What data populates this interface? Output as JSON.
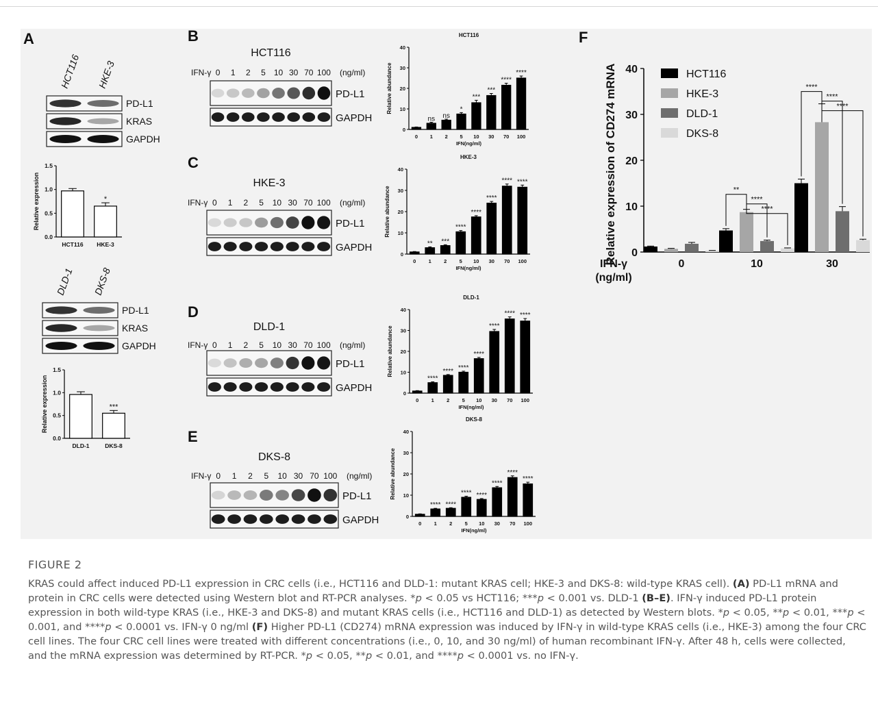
{
  "panels": {
    "A": {
      "label": "A",
      "top_blot": {
        "lanes": [
          "HCT116",
          "HKE-3"
        ],
        "bands": [
          "PD-L1",
          "KRAS",
          "GAPDH"
        ]
      },
      "top_chart_id": 0,
      "bottom_blot": {
        "lanes": [
          "DLD-1",
          "DKS-8"
        ],
        "bands": [
          "PD-L1",
          "KRAS",
          "GAPDH"
        ]
      },
      "bottom_chart_id": 1
    },
    "B": {
      "label": "B",
      "cell": "HCT116",
      "treat": "IFN-γ",
      "unit": "(ng/ml)",
      "doses": [
        "0",
        "1",
        "2",
        "5",
        "10",
        "30",
        "70",
        "100"
      ],
      "bands": [
        "PD-L1",
        "GAPDH"
      ],
      "chart_id": 2
    },
    "C": {
      "label": "C",
      "cell": "HKE-3",
      "treat": "IFN-γ",
      "unit": "(ng/ml)",
      "doses": [
        "0",
        "1",
        "2",
        "5",
        "10",
        "30",
        "70",
        "100"
      ],
      "bands": [
        "PD-L1",
        "GAPDH"
      ],
      "chart_id": 3
    },
    "D": {
      "label": "D",
      "cell": "DLD-1",
      "treat": "IFN-γ",
      "unit": "(ng/ml)",
      "doses": [
        "0",
        "1",
        "2",
        "5",
        "10",
        "30",
        "70",
        "100"
      ],
      "bands": [
        "PD-L1",
        "GAPDH"
      ],
      "chart_id": 4
    },
    "E": {
      "label": "E",
      "cell": "DKS-8",
      "treat": "IFN-γ",
      "unit": "(ng/ml)",
      "doses": [
        "0",
        "1",
        "2",
        "5",
        "10",
        "30",
        "70",
        "100"
      ],
      "bands": [
        "PD-L1",
        "GAPDH"
      ],
      "chart_id": 5
    },
    "F": {
      "label": "F",
      "chart_id": 6
    }
  },
  "chart_data": [
    {
      "type": "bar",
      "title": "",
      "ylabel": "Relative expression",
      "xlabel": "",
      "categories": [
        "HCT116",
        "HKE-3"
      ],
      "values": [
        0.97,
        0.65
      ],
      "errors": [
        0.05,
        0.07
      ],
      "sig": [
        "",
        "*"
      ],
      "ylim": [
        0,
        1.5
      ],
      "yticks": [
        "0.0",
        "0.5",
        "1.0",
        "1.5"
      ],
      "bar_color": "#ffffff"
    },
    {
      "type": "bar",
      "title": "",
      "ylabel": "Relative expression",
      "xlabel": "",
      "categories": [
        "DLD-1",
        "DKS-8"
      ],
      "values": [
        0.96,
        0.55
      ],
      "errors": [
        0.06,
        0.06
      ],
      "sig": [
        "",
        "***"
      ],
      "ylim": [
        0,
        1.5
      ],
      "yticks": [
        "0.0",
        "0.5",
        "1.0",
        "1.5"
      ],
      "bar_color": "#ffffff"
    },
    {
      "type": "bar",
      "title": "HCT116",
      "ylabel": "Relative abundance",
      "xlabel": "IFN(ng/ml)",
      "categories": [
        "0",
        "1",
        "2",
        "5",
        "10",
        "30",
        "70",
        "100"
      ],
      "values": [
        1,
        3,
        4.5,
        7.5,
        13,
        16.5,
        21.5,
        25
      ],
      "errors": [
        0.2,
        0.5,
        0.5,
        0.7,
        1.2,
        1.0,
        1.0,
        1.0
      ],
      "sig": [
        "",
        "ns",
        "ns",
        "*",
        "***",
        "***",
        "****",
        "****"
      ],
      "ylim": [
        0,
        40
      ],
      "yticks": [
        "0",
        "10",
        "20",
        "30",
        "40"
      ],
      "bar_color": "#000000"
    },
    {
      "type": "bar",
      "title": "HKE-3",
      "ylabel": "Relative abundance",
      "xlabel": "IFN(ng/ml)",
      "categories": [
        "0",
        "1",
        "2",
        "5",
        "10",
        "30",
        "70",
        "100"
      ],
      "values": [
        1,
        3,
        4,
        10.5,
        17.5,
        24,
        32,
        31.5
      ],
      "errors": [
        0.2,
        0.4,
        0.4,
        0.6,
        0.6,
        0.8,
        1.0,
        1.0
      ],
      "sig": [
        "",
        "**",
        "***",
        "****",
        "****",
        "****",
        "****",
        "****"
      ],
      "ylim": [
        0,
        40
      ],
      "yticks": [
        "0",
        "10",
        "20",
        "30",
        "40"
      ],
      "bar_color": "#000000"
    },
    {
      "type": "bar",
      "title": "DLD-1",
      "ylabel": "Relative abundance",
      "xlabel": "IFN(ng/ml)",
      "categories": [
        "0",
        "1",
        "2",
        "5",
        "10",
        "30",
        "70",
        "100"
      ],
      "values": [
        1,
        5,
        8.5,
        10,
        16.5,
        29.5,
        35.5,
        34.5
      ],
      "errors": [
        0.2,
        0.4,
        0.4,
        0.5,
        0.6,
        1.0,
        1.0,
        1.2
      ],
      "sig": [
        "",
        "****",
        "****",
        "****",
        "****",
        "****",
        "****",
        "****"
      ],
      "ylim": [
        0,
        40
      ],
      "yticks": [
        "0",
        "10",
        "20",
        "30",
        "40"
      ],
      "bar_color": "#000000"
    },
    {
      "type": "bar",
      "title": "DKS-8",
      "ylabel": "Relative abundance",
      "xlabel": "IFN(ng/ml)",
      "categories": [
        "0",
        "1",
        "2",
        "5",
        "10",
        "30",
        "70",
        "100"
      ],
      "values": [
        1,
        3.5,
        3.8,
        9,
        8,
        13.5,
        18.3,
        15.3
      ],
      "errors": [
        0.2,
        0.3,
        0.3,
        0.5,
        0.4,
        0.6,
        0.8,
        0.8
      ],
      "sig": [
        "",
        "****",
        "****",
        "****",
        "****",
        "****",
        "****",
        "****"
      ],
      "ylim": [
        0,
        40
      ],
      "yticks": [
        "0",
        "10",
        "20",
        "30",
        "40"
      ],
      "bar_color": "#000000"
    },
    {
      "type": "bar",
      "title": "",
      "ylabel": "Relative expression of CD274 mRNA",
      "xlabel_lines": [
        "IFN-γ",
        "(ng/ml)"
      ],
      "categories": [
        "0",
        "10",
        "30"
      ],
      "series": [
        {
          "name": "HCT116",
          "color": "#000000",
          "values": [
            1.2,
            4.7,
            15.0
          ],
          "errors": [
            0.1,
            0.4,
            0.9
          ]
        },
        {
          "name": "HKE-3",
          "color": "#a6a6a6",
          "values": [
            0.7,
            8.7,
            28.3
          ],
          "errors": [
            0.1,
            0.6,
            4.0
          ]
        },
        {
          "name": "DLD-1",
          "color": "#6e6e6e",
          "values": [
            1.8,
            2.4,
            8.9
          ],
          "errors": [
            0.3,
            0.2,
            1.0
          ]
        },
        {
          "name": "DKS-8",
          "color": "#d9d9d9",
          "values": [
            0.3,
            0.8,
            2.6
          ],
          "errors": [
            0.05,
            0.1,
            0.2
          ]
        }
      ],
      "brackets": [
        {
          "group": 1,
          "from": 0,
          "to": 1,
          "text": "**"
        },
        {
          "group": 1,
          "from": 1,
          "to": 2,
          "text": "****"
        },
        {
          "group": 1,
          "from": 1,
          "to": 3,
          "text": "****"
        },
        {
          "group": 2,
          "from": 0,
          "to": 1,
          "text": "****"
        },
        {
          "group": 2,
          "from": 1,
          "to": 2,
          "text": "****"
        },
        {
          "group": 2,
          "from": 1,
          "to": 3,
          "text": "****"
        }
      ],
      "ylim": [
        0,
        40
      ],
      "yticks": [
        "0",
        "10",
        "20",
        "30",
        "40"
      ],
      "legend": "top-left"
    }
  ],
  "caption": {
    "title": "FIGURE 2",
    "text_html": "KRAS could affect induced PD-L1 expression in CRC cells (i.e., HCT116 and DLD-1: mutant KRAS cell; HKE-3 and DKS-8: wild-type KRAS cell). <b>(A)</b> PD-L1 mRNA and protein in CRC cells were detected using Western blot and RT-PCR analyses. *<i>p</i> &lt; 0.05 vs HCT116; ***<i>p</i> &lt; 0.001 vs. DLD-1 <b>(B–E)</b>. IFN-γ induced PD-L1 protein expression in both wild-type KRAS (i.e., HKE-3 and DKS-8) and mutant KRAS cells (i.e., HCT116 and DLD-1) as detected by Western blots. *<i>p</i> &lt; 0.05, **<i>p</i> &lt; 0.01, ***<i>p</i> &lt; 0.001, and ****<i>p</i> &lt; 0.0001 vs. IFN-γ 0 ng/ml <b>(F)</b> Higher PD-L1 (CD274) mRNA expression was induced by IFN-γ in wild-type KRAS cells (i.e., HKE-3) among the four CRC cell lines. The four CRC cell lines were treated with different concentrations (i.e., 0, 10, and 30 ng/ml) of human recombinant IFN-γ. After 48 h, cells were collected, and the mRNA expression was determined by RT-PCR. *<i>p</i> &lt; 0.05, **<i>p</i> &lt; 0.01, and ****<i>p</i> &lt; 0.0001 vs. no IFN-γ."
  }
}
